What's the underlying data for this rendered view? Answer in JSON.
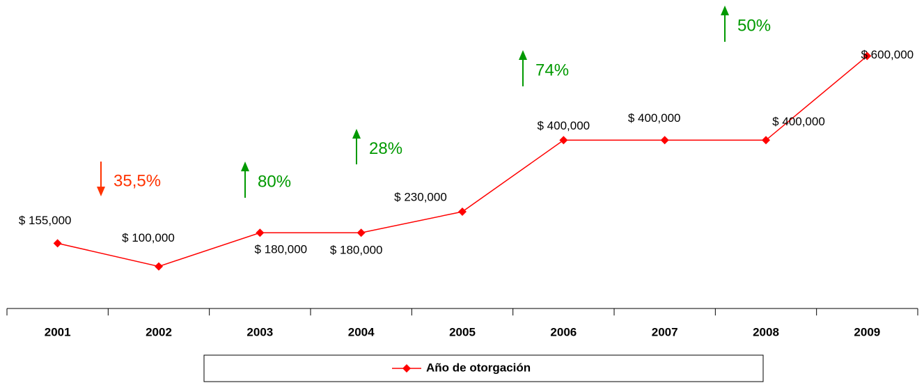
{
  "chart_data": {
    "type": "line",
    "categories": [
      "2001",
      "2002",
      "2003",
      "2004",
      "2005",
      "2006",
      "2007",
      "2008",
      "2009"
    ],
    "series": [
      {
        "name": "Año de otorgación",
        "color": "#ff0000",
        "values": [
          155000,
          100000,
          180000,
          180000,
          230000,
          400000,
          400000,
          400000,
          600000
        ],
        "value_labels": [
          "$ 155,000",
          "$ 100,000",
          "$ 180,000",
          "$ 180,000",
          "$ 230,000",
          "$ 400,000",
          "$ 400,000",
          "$ 400,000",
          "$ 600,000"
        ]
      }
    ],
    "ylim": [
      0,
      700000
    ],
    "legend": "bottom",
    "annotations": [
      {
        "text": "35,5%",
        "direction": "down",
        "color": "#ff3300"
      },
      {
        "text": "80%",
        "direction": "up",
        "color": "#009900"
      },
      {
        "text": "28%",
        "direction": "up",
        "color": "#009900"
      },
      {
        "text": "74%",
        "direction": "up",
        "color": "#009900"
      },
      {
        "text": "50%",
        "direction": "up",
        "color": "#009900"
      }
    ]
  }
}
